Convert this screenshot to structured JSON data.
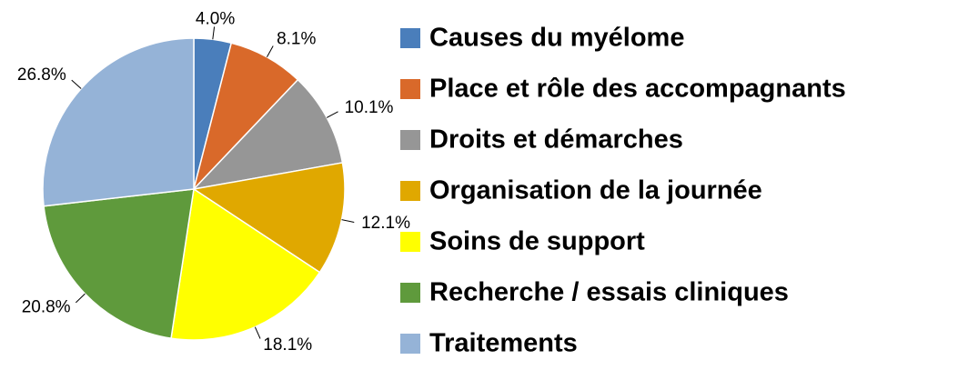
{
  "chart_data": {
    "type": "pie",
    "categories": [
      "Causes du myélome",
      "Place et rôle des accompagnants",
      "Droits et démarches",
      "Organisation de la journée",
      "Soins de support",
      "Recherche / essais cliniques",
      "Traitements"
    ],
    "values": [
      4.0,
      8.1,
      10.1,
      12.1,
      18.1,
      20.8,
      26.8
    ],
    "value_labels": [
      "4.0%",
      "8.1%",
      "10.1%",
      "12.1%",
      "18.1%",
      "20.8%",
      "26.8%"
    ],
    "colors": [
      "#4a7ebb",
      "#d9692a",
      "#969696",
      "#e0a800",
      "#ffff00",
      "#5f9a3c",
      "#95b3d7"
    ],
    "legend": "right"
  }
}
